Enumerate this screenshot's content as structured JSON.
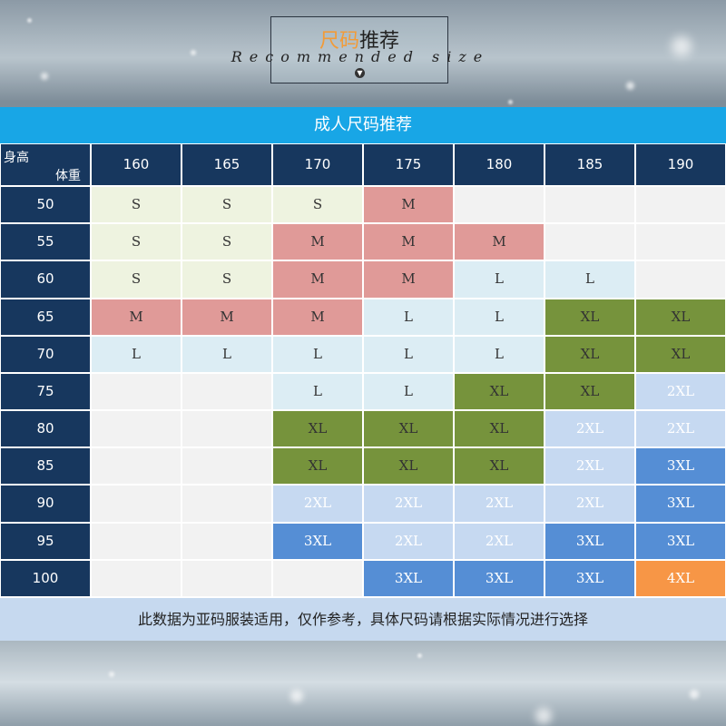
{
  "header": {
    "title_highlight": "尺码",
    "title_rest": "推荐",
    "subtitle": "Recommended size"
  },
  "table": {
    "title": "成人尺码推荐",
    "corner_height": "身高",
    "corner_weight": "体重",
    "heights": [
      160,
      165,
      170,
      175,
      180,
      185,
      190
    ],
    "rows": [
      {
        "weight": 50,
        "cells": [
          "S",
          "S",
          "S",
          "M",
          null,
          null,
          null
        ]
      },
      {
        "weight": 55,
        "cells": [
          "S",
          "S",
          "M",
          "M",
          "M",
          null,
          null
        ]
      },
      {
        "weight": 60,
        "cells": [
          "S",
          "S",
          "M",
          "M",
          "L",
          "L",
          null
        ]
      },
      {
        "weight": 65,
        "cells": [
          "M",
          "M",
          "M",
          "L",
          "L",
          "XL",
          "XL"
        ]
      },
      {
        "weight": 70,
        "cells": [
          "L",
          "L",
          "L",
          "L",
          "L",
          "XL",
          "XL"
        ]
      },
      {
        "weight": 75,
        "cells": [
          null,
          null,
          "L",
          "L",
          "XL",
          "XL",
          "2XL"
        ]
      },
      {
        "weight": 80,
        "cells": [
          null,
          null,
          "XL",
          "XL",
          "XL",
          "2XL",
          "2XL"
        ]
      },
      {
        "weight": 85,
        "cells": [
          null,
          null,
          "XL",
          "XL",
          "XL",
          "2XL",
          "3XL"
        ]
      },
      {
        "weight": 90,
        "cells": [
          null,
          null,
          "2XL",
          "2XL",
          "2XL",
          "2XL",
          "3XL"
        ]
      },
      {
        "weight": 95,
        "cells": [
          null,
          null,
          "3XL",
          "2XL",
          "2XL",
          "3XL",
          "3XL"
        ]
      },
      {
        "weight": 100,
        "cells": [
          null,
          null,
          null,
          "3XL",
          "3XL",
          "3XL",
          "4XL"
        ]
      }
    ],
    "size_colors": {
      "S": "#eef3e0",
      "M": "#e09a98",
      "L": "#dcedf4",
      "XL": "#76933c",
      "2XL": "#c6d9f1",
      "3XL": "#558ed5",
      "4XL": "#f79646"
    },
    "empty_color": "#f2f2f2",
    "note": "此数据为亚码服装适用，仅作参考，具体尺码请根据实际情况进行选择"
  }
}
